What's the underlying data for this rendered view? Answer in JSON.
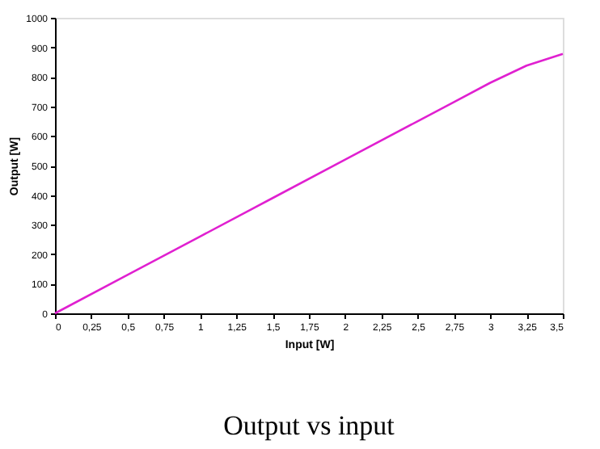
{
  "chart_data": {
    "type": "line",
    "title": "Output vs input",
    "xlabel": "Input [W]",
    "ylabel": "Output [W]",
    "x": [
      0,
      0.5,
      1,
      1.5,
      2,
      2.5,
      2.75,
      3,
      3.25,
      3.5
    ],
    "series": [
      {
        "color": "#e020d0",
        "values": [
          0,
          130,
          260,
          390,
          520,
          650,
          715,
          780,
          838,
          878
        ]
      }
    ],
    "xlim": [
      0,
      3.5
    ],
    "xticks": [
      0,
      {
        "value": 0.25,
        "label": "0,25"
      },
      {
        "value": 0.5,
        "label": "0,5"
      },
      {
        "value": 0.75,
        "label": "0,75"
      },
      1,
      {
        "value": 1.25,
        "label": "1,25"
      },
      {
        "value": 1.5,
        "label": "1,5"
      },
      {
        "value": 1.75,
        "label": "1,75"
      },
      2,
      {
        "value": 2.25,
        "label": "2,25"
      },
      {
        "value": 2.5,
        "label": "2,5"
      },
      {
        "value": 2.75,
        "label": "2,75"
      },
      3,
      {
        "value": 3.25,
        "label": "3,25"
      },
      {
        "value": 3.5,
        "label": "3,5"
      }
    ],
    "ylim": [
      0,
      1000
    ],
    "yticks": [
      0,
      100,
      200,
      300,
      400,
      500,
      600,
      700,
      800,
      900,
      1000
    ],
    "grid": false,
    "legend": false,
    "marker": "none",
    "line_style": "solid"
  }
}
